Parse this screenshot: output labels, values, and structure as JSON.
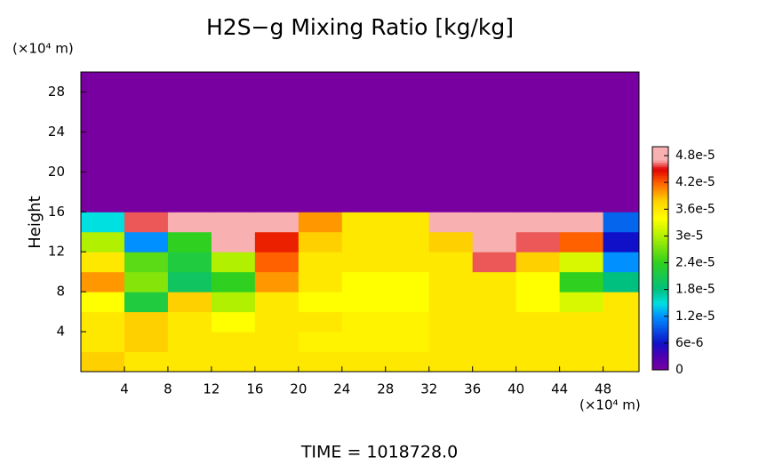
{
  "chart_data": {
    "type": "heatmap",
    "title": "H2S−g Mixing Ratio [kg/kg]",
    "ylabel": "Height",
    "xunit": "(×10⁴ m)",
    "yunit": "(×10⁴ m)",
    "footer": "TIME = 1018728.0",
    "xlim": [
      0,
      51.3
    ],
    "ylim": [
      0,
      30
    ],
    "xticks": [
      4,
      8,
      12,
      16,
      20,
      24,
      28,
      32,
      36,
      40,
      44,
      48
    ],
    "yticks": [
      4,
      8,
      12,
      16,
      20,
      24,
      28
    ],
    "x": [
      2,
      6,
      10,
      14,
      18,
      22,
      26,
      30,
      34,
      38,
      42,
      46,
      50
    ],
    "y": [
      1,
      3,
      5,
      7,
      9,
      11,
      13,
      15,
      17,
      19,
      21,
      23,
      25,
      27,
      29
    ],
    "z": [
      [
        3.8e-05,
        3.6e-05,
        3.6e-05,
        3.6e-05,
        3.6e-05,
        3.6e-05,
        3.6e-05,
        3.6e-05,
        3.6e-05,
        3.6e-05,
        3.6e-05,
        3.6e-05,
        3.6e-05
      ],
      [
        3.6e-05,
        3.8e-05,
        3.6e-05,
        3.6e-05,
        3.6e-05,
        3.5e-05,
        3.5e-05,
        3.5e-05,
        3.6e-05,
        3.6e-05,
        3.6e-05,
        3.6e-05,
        3.6e-05
      ],
      [
        3.6e-05,
        3.8e-05,
        3.6e-05,
        3.4e-05,
        3.6e-05,
        3.6e-05,
        3.5e-05,
        3.5e-05,
        3.6e-05,
        3.6e-05,
        3.6e-05,
        3.6e-05,
        3.6e-05
      ],
      [
        3.4e-05,
        2.2e-05,
        3.8e-05,
        3e-05,
        3.6e-05,
        3.4e-05,
        3.4e-05,
        3.4e-05,
        3.6e-05,
        3.6e-05,
        3.4e-05,
        3.2e-05,
        3.6e-05
      ],
      [
        4e-05,
        2.8e-05,
        2e-05,
        2.4e-05,
        4e-05,
        3.6e-05,
        3.4e-05,
        3.4e-05,
        3.6e-05,
        3.6e-05,
        3.4e-05,
        2.4e-05,
        1.8e-05
      ],
      [
        3.6e-05,
        2.6e-05,
        2.2e-05,
        3e-05,
        4.2e-05,
        3.6e-05,
        3.6e-05,
        3.6e-05,
        3.6e-05,
        4.6e-05,
        3.8e-05,
        3.2e-05,
        1.2e-05
      ],
      [
        3e-05,
        1.2e-05,
        2.4e-05,
        4.8e-05,
        4.4e-05,
        3.8e-05,
        3.6e-05,
        3.6e-05,
        3.8e-05,
        4.8e-05,
        4.6e-05,
        4.2e-05,
        6e-06
      ],
      [
        1.5e-05,
        4.6e-05,
        4.8e-05,
        4.8e-05,
        4.8e-05,
        4e-05,
        3.6e-05,
        3.6e-05,
        4.8e-05,
        4.8e-05,
        4.8e-05,
        4.8e-05,
        1e-05
      ],
      [
        0,
        0,
        0,
        0,
        0,
        0,
        0,
        0,
        0,
        0,
        0,
        0,
        0
      ],
      [
        0,
        0,
        0,
        0,
        0,
        0,
        0,
        0,
        0,
        0,
        0,
        0,
        0
      ],
      [
        0,
        0,
        0,
        0,
        0,
        0,
        0,
        0,
        0,
        0,
        0,
        0,
        0
      ],
      [
        0,
        0,
        0,
        0,
        0,
        0,
        0,
        0,
        0,
        0,
        0,
        0,
        0
      ],
      [
        0,
        0,
        0,
        0,
        0,
        0,
        0,
        0,
        0,
        0,
        0,
        0,
        0
      ],
      [
        0,
        0,
        0,
        0,
        0,
        0,
        0,
        0,
        0,
        0,
        0,
        0,
        0
      ],
      [
        0,
        0,
        0,
        0,
        0,
        0,
        0,
        0,
        0,
        0,
        0,
        0,
        0
      ]
    ],
    "zlim": [
      0,
      5e-05
    ],
    "zticks": [
      0,
      {
        "value": 6e-06,
        "label": "6e-6"
      },
      {
        "value": 1.2e-05,
        "label": "1.2e-5"
      },
      {
        "value": 1.8e-05,
        "label": "1.8e-5"
      },
      {
        "value": 2.4e-05,
        "label": "2.4e-5"
      },
      {
        "value": 3e-05,
        "label": "3e-5"
      },
      {
        "value": 3.6e-05,
        "label": "3.6e-5"
      },
      {
        "value": 4.2e-05,
        "label": "4.2e-5"
      },
      {
        "value": 4.8e-05,
        "label": "4.8e-5"
      }
    ],
    "colorscale": [
      [
        0,
        "#7800a0"
      ],
      [
        3e-06,
        "#5000b0"
      ],
      [
        6e-06,
        "#1010c8"
      ],
      [
        1.2e-05,
        "#0090ff"
      ],
      [
        1.5e-05,
        "#00e0e0"
      ],
      [
        1.8e-05,
        "#00c080"
      ],
      [
        2.4e-05,
        "#30d020"
      ],
      [
        3e-05,
        "#b0f000"
      ],
      [
        3.4e-05,
        "#ffff00"
      ],
      [
        3.8e-05,
        "#ffd000"
      ],
      [
        4.2e-05,
        "#ff6000"
      ],
      [
        4.5e-05,
        "#e00000"
      ],
      [
        4.7e-05,
        "#f8b0b0"
      ],
      [
        5e-05,
        "#f8b0b0"
      ]
    ]
  }
}
